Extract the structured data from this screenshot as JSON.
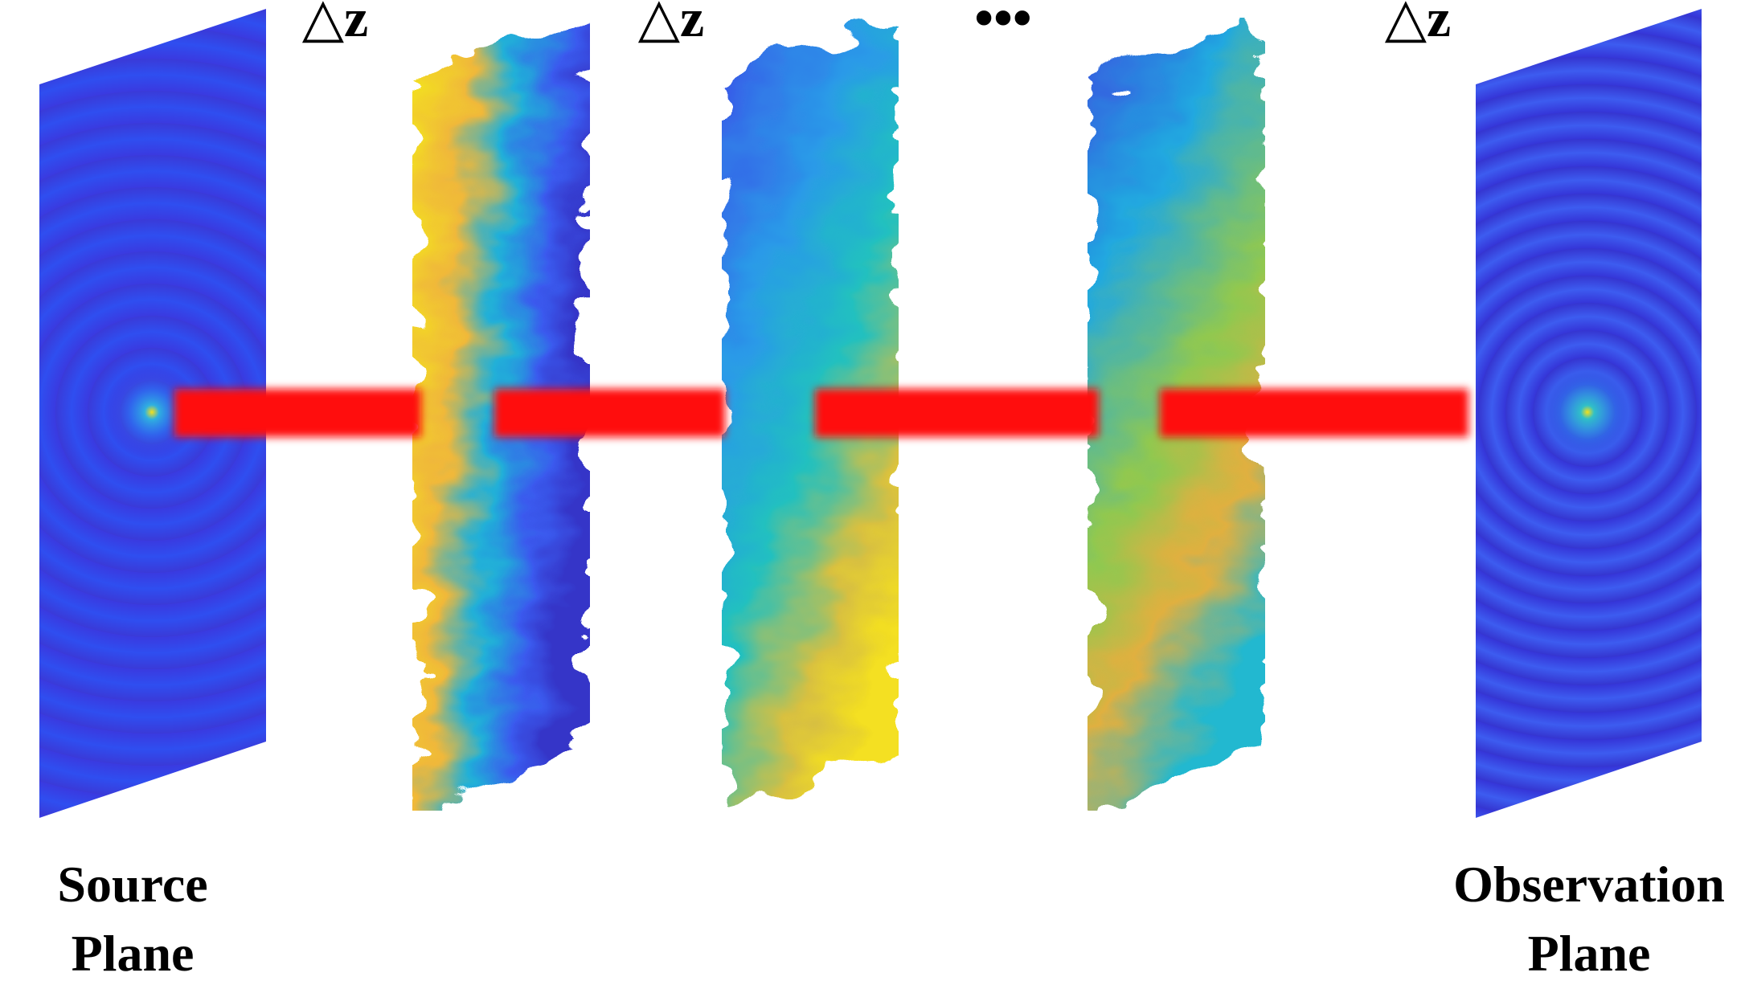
{
  "spacing_labels": [
    "△z",
    "△z",
    "△z"
  ],
  "ellipsis": "•••",
  "source_plane": {
    "lines": [
      "Source",
      "Plane"
    ]
  },
  "observation_plane": {
    "lines": [
      "Observation",
      "Plane"
    ]
  }
}
